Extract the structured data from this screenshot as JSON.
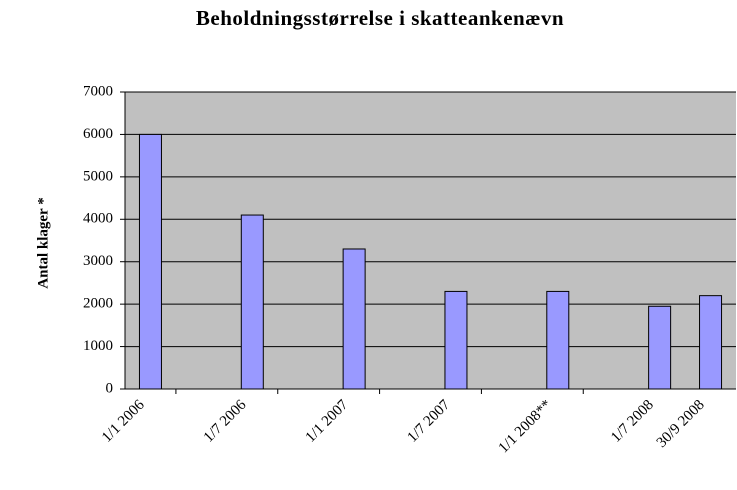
{
  "chart_data": {
    "type": "bar",
    "title": "Beholdningsstørrelse i skatteankenævn",
    "y_label": "Antal klager *",
    "categories": [
      "1/1 2006",
      null,
      "1/7 2006",
      null,
      "1/1 2007",
      null,
      "1/7 2007",
      null,
      "1/1 2008**",
      null,
      "1/7 2008",
      "30/9 2008"
    ],
    "values": [
      6000,
      null,
      4100,
      null,
      3300,
      null,
      2300,
      null,
      2300,
      null,
      1950,
      2200
    ],
    "color": "#9999ff",
    "ylim": [
      0,
      7000
    ],
    "yticks": [
      0,
      1000,
      2000,
      3000,
      4000,
      5000,
      6000,
      7000
    ],
    "grid": true
  }
}
